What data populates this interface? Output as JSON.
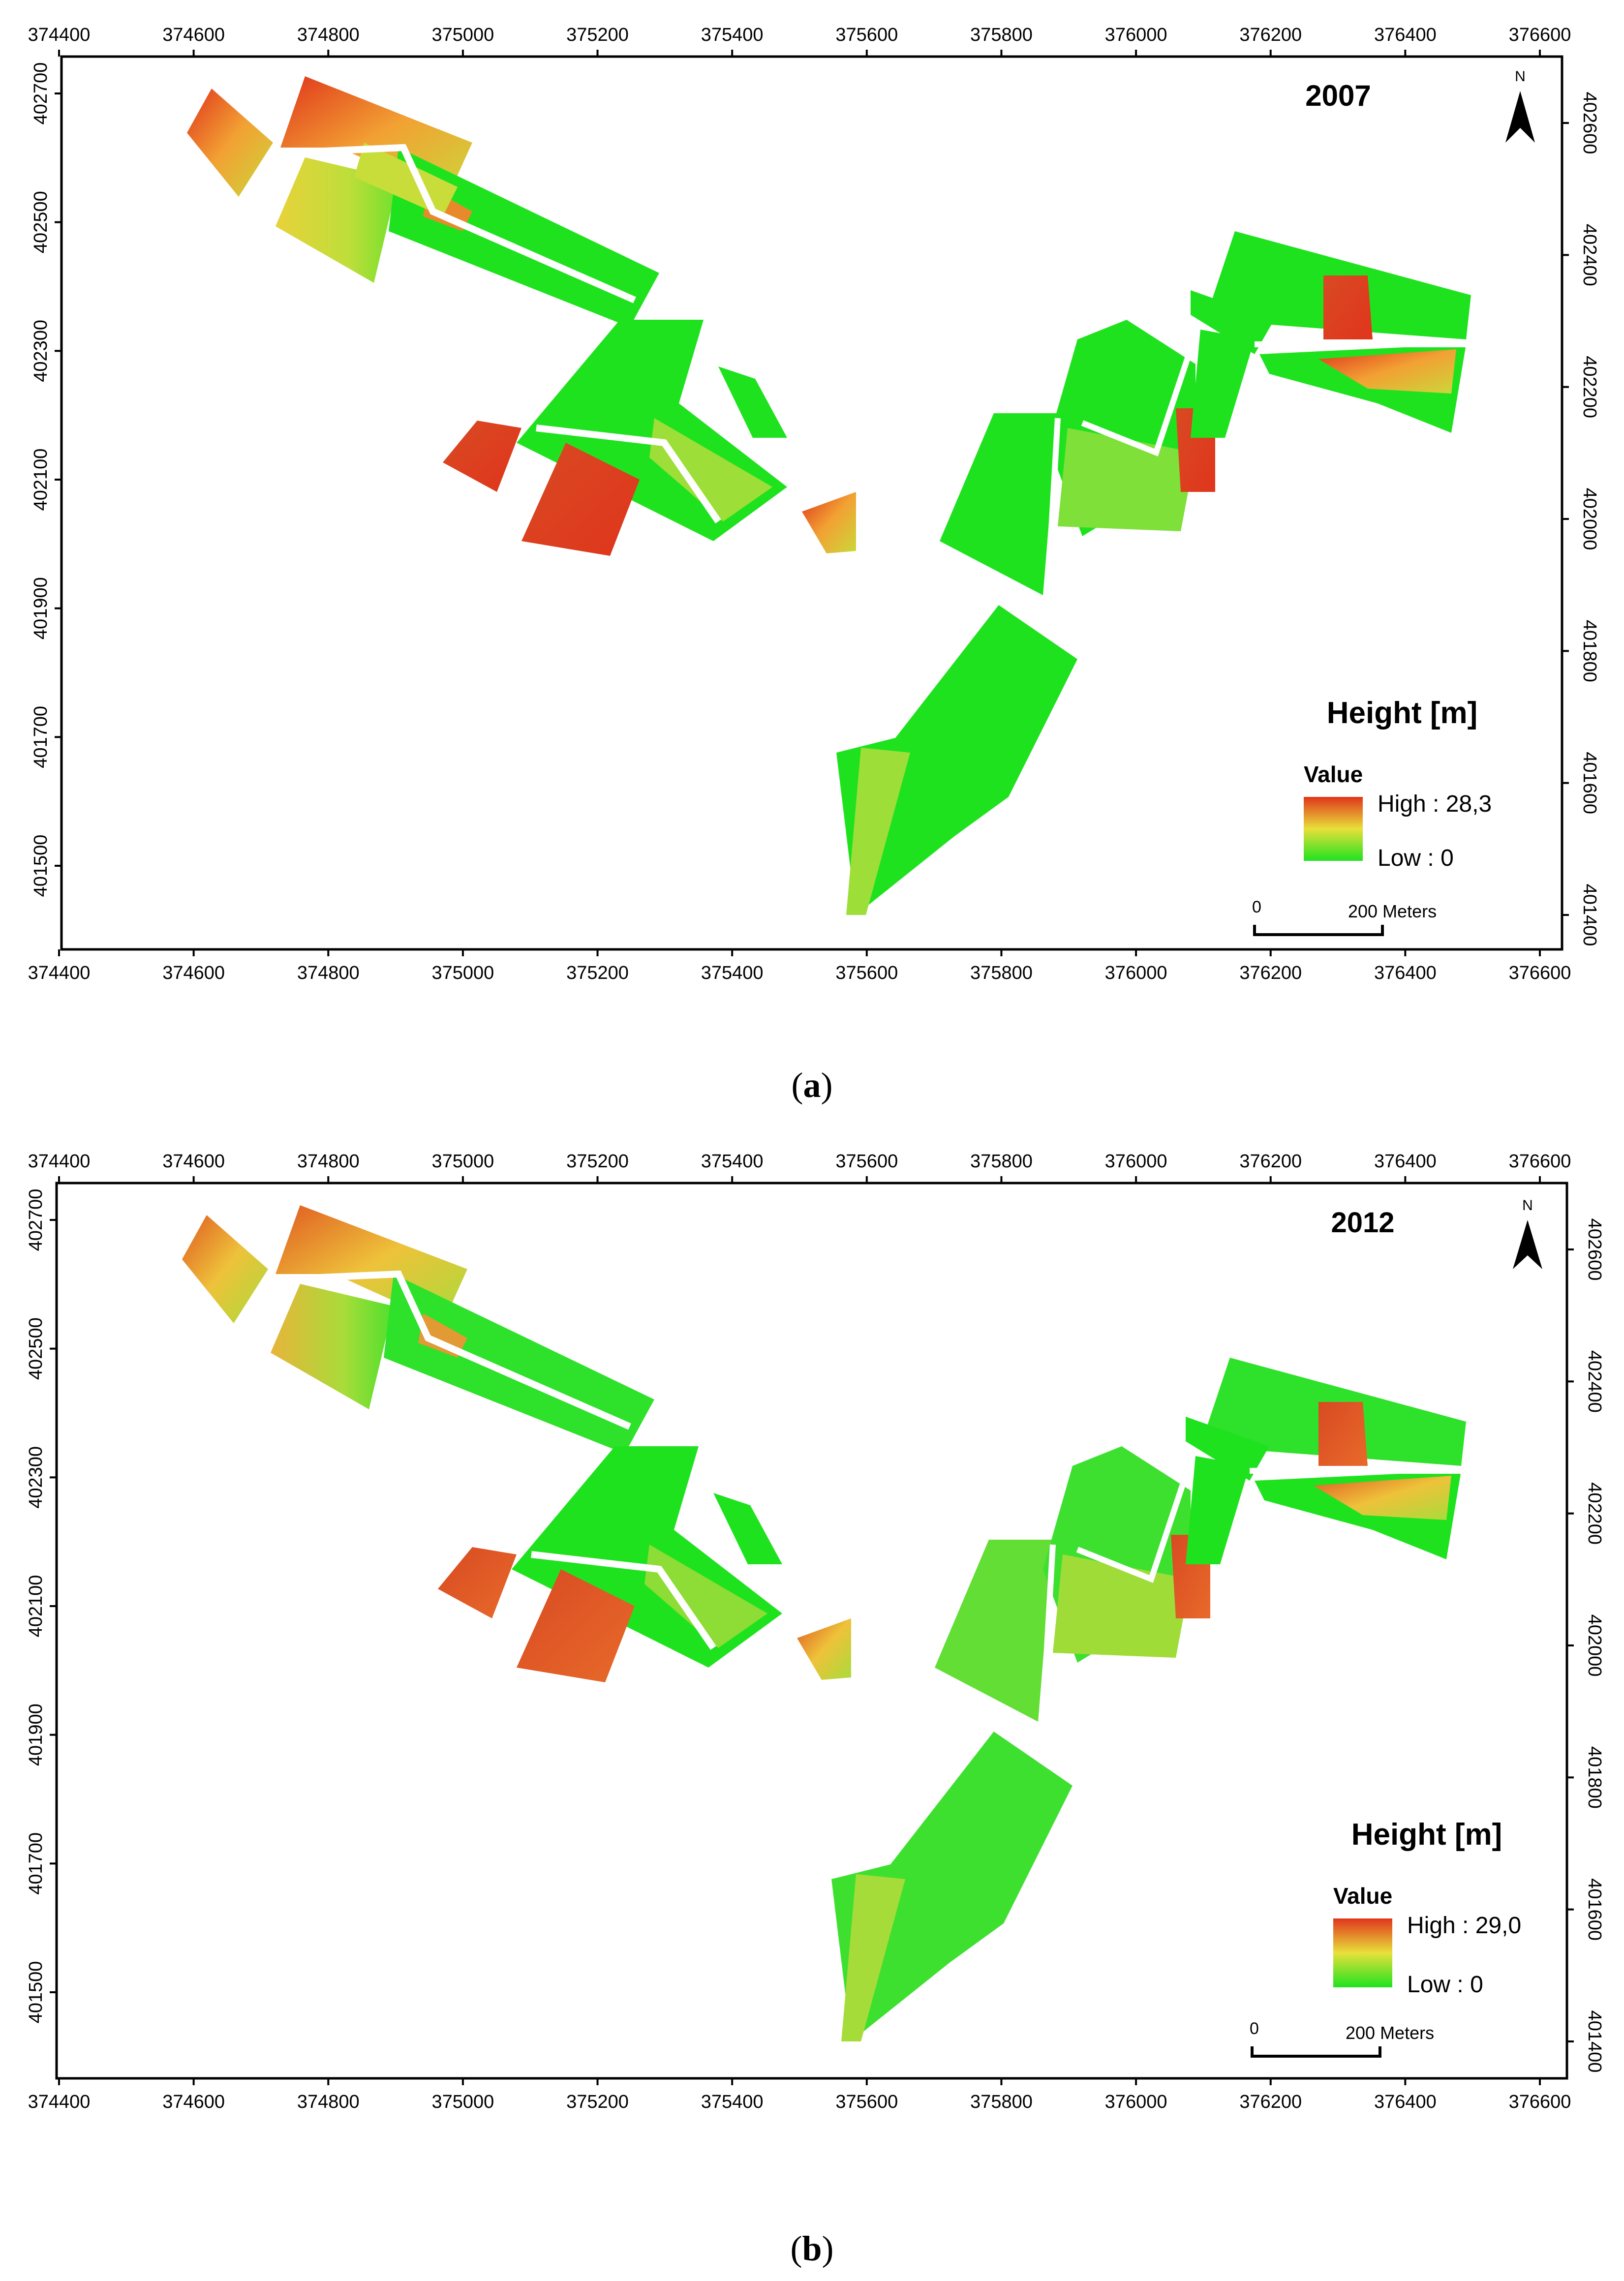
{
  "colors": {
    "low": "#1fe21f",
    "mid": "#e8e03a",
    "high": "#e0351c",
    "frame": "#000000",
    "road": "#ffffff"
  },
  "x_ticks": [
    "374400",
    "374600",
    "374800",
    "375000",
    "375200",
    "375400",
    "375600",
    "375800",
    "376000",
    "376200",
    "376400",
    "376600"
  ],
  "y_ticks_left": [
    "402700",
    "402500",
    "402300",
    "402100",
    "401900",
    "401700",
    "401500"
  ],
  "y_ticks_right": [
    "402600",
    "402400",
    "402200",
    "402000",
    "401800",
    "401600",
    "401400"
  ],
  "panels": [
    {
      "id": "a",
      "year": "2007",
      "caption_letter": "a",
      "legend": {
        "title": "Height [m]",
        "value_label": "Value",
        "high": "High :   28,3",
        "low": "Low : 0",
        "high_value": 28.3,
        "low_value": 0
      },
      "scale": {
        "zero": "0",
        "label": "200 Meters"
      },
      "north": "N"
    },
    {
      "id": "b",
      "year": "2012",
      "caption_letter": "b",
      "legend": {
        "title": "Height [m]",
        "value_label": "Value",
        "high": "High : 29,0",
        "low": "Low : 0",
        "high_value": 29.0,
        "low_value": 0
      },
      "scale": {
        "zero": "0",
        "label": "200 Meters"
      },
      "north": "N"
    }
  ]
}
